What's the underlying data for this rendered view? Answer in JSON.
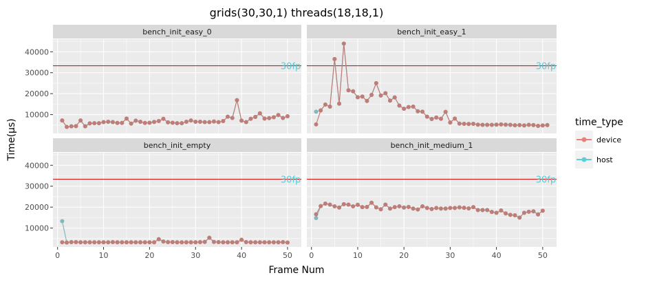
{
  "chart_data": {
    "type": "line",
    "title": "grids(30,30,1)  threads(18,18,1)",
    "xlabel": "Frame Num",
    "ylabel": "Time(μs)",
    "xlim": [
      -1,
      53
    ],
    "ylim": [
      1000,
      46000
    ],
    "x_ticks": [
      0,
      10,
      20,
      30,
      40,
      50
    ],
    "y_ticks": [
      10000,
      20000,
      30000,
      40000
    ],
    "x_tick_labels": [
      "0",
      "10",
      "20",
      "30",
      "40",
      "50"
    ],
    "y_tick_labels": [
      "10000",
      "20000",
      "30000",
      "40000"
    ],
    "reference_line": {
      "value": 33333,
      "color": "#cc0000",
      "label": "30fps"
    },
    "grid": true,
    "legend": {
      "title": "time_type",
      "position": "right",
      "entries": [
        {
          "label": "device",
          "color": "#e8807b"
        },
        {
          "label": "host",
          "color": "#5ccfd9"
        }
      ]
    },
    "series_colors": {
      "device": "#c07d78",
      "host": "#80b8bb"
    },
    "panels": [
      {
        "name": "bench_init_easy_0",
        "series": [
          {
            "name": "device",
            "values": [
              7200,
              4100,
              4400,
              4500,
              7200,
              4400,
              5800,
              5900,
              5900,
              6400,
              6600,
              6400,
              6000,
              6000,
              8100,
              5700,
              7100,
              6600,
              6000,
              6100,
              6500,
              6900,
              8000,
              6300,
              6100,
              5900,
              5900,
              6600,
              7200,
              6600,
              6600,
              6400,
              6400,
              6700,
              6400,
              6900,
              9000,
              8400,
              16900,
              7100,
              6400,
              8000,
              8900,
              10600,
              8100,
              8300,
              8700,
              9800,
              8400,
              9200
            ]
          },
          {
            "name": "host",
            "values": [
              7200,
              4100,
              4400,
              4500,
              7200,
              4400,
              5800,
              5900,
              5900,
              6400,
              6600,
              6400,
              6000,
              6000,
              8100,
              5700,
              7100,
              6600,
              6000,
              6100,
              6500,
              6900,
              8000,
              6300,
              6100,
              5900,
              5900,
              6600,
              7200,
              6600,
              6600,
              6400,
              6400,
              6700,
              6400,
              6900,
              9000,
              8400,
              16900,
              7100,
              6400,
              8000,
              8900,
              10600,
              8100,
              8300,
              8700,
              9800,
              8400,
              9200
            ]
          }
        ]
      },
      {
        "name": "bench_init_easy_1",
        "series": [
          {
            "name": "device",
            "values": [
              5300,
              12000,
              14800,
              13800,
              36500,
              15200,
              43900,
              21600,
              21100,
              18300,
              18600,
              16500,
              19400,
              25000,
              19100,
              20200,
              16700,
              18200,
              14300,
              12800,
              13600,
              13800,
              11600,
              11400,
              9000,
              7900,
              8600,
              8000,
              11300,
              6200,
              8100,
              5700,
              5600,
              5500,
              5600,
              5200,
              5100,
              5100,
              5100,
              5200,
              5300,
              5200,
              5100,
              4900,
              5000,
              4800,
              5100,
              5000,
              4600,
              4800,
              5000
            ]
          },
          {
            "name": "host",
            "values": [
              11400,
              12000,
              14800,
              13800,
              36500,
              15200,
              43900,
              21600,
              21100,
              18300,
              18600,
              16500,
              19400,
              25000,
              19100,
              20200,
              16700,
              18200,
              14300,
              12800,
              13600,
              13800,
              11600,
              11400,
              9000,
              7900,
              8600,
              8000,
              11300,
              6200,
              8100,
              5700,
              5600,
              5500,
              5600,
              5200,
              5100,
              5100,
              5100,
              5200,
              5300,
              5200,
              5100,
              4900,
              5000,
              4800,
              5100,
              5000,
              4600,
              4800,
              5000
            ]
          }
        ]
      },
      {
        "name": "bench_init_empty",
        "series": [
          {
            "name": "device",
            "values": [
              3200,
              3100,
              3300,
              3300,
              3200,
              3200,
              3200,
              3200,
              3200,
              3200,
              3200,
              3300,
              3200,
              3200,
              3200,
              3200,
              3200,
              3200,
              3200,
              3200,
              3200,
              4700,
              3600,
              3300,
              3300,
              3200,
              3200,
              3200,
              3200,
              3200,
              3300,
              3400,
              5400,
              3400,
              3300,
              3200,
              3200,
              3200,
              3200,
              4400,
              3300,
              3200,
              3200,
              3200,
              3200,
              3200,
              3200,
              3200,
              3300,
              3100
            ]
          },
          {
            "name": "host",
            "values": [
              13300,
              3100,
              3300,
              3300,
              3200,
              3200,
              3200,
              3200,
              3200,
              3200,
              3200,
              3300,
              3200,
              3200,
              3200,
              3200,
              3200,
              3200,
              3200,
              3200,
              3200,
              4700,
              3600,
              3300,
              3300,
              3200,
              3200,
              3200,
              3200,
              3200,
              3300,
              3400,
              5400,
              3400,
              3300,
              3200,
              3200,
              3200,
              3200,
              4400,
              3300,
              3200,
              3200,
              3200,
              3200,
              3200,
              3200,
              3200,
              3300,
              3100
            ]
          }
        ]
      },
      {
        "name": "bench_init_medium_1",
        "series": [
          {
            "name": "device",
            "values": [
              16600,
              20500,
              21700,
              21200,
              20400,
              19800,
              21400,
              21200,
              20400,
              21100,
              20000,
              20100,
              22100,
              19900,
              19000,
              21200,
              19300,
              20000,
              20400,
              19800,
              20100,
              19300,
              18900,
              20400,
              19600,
              19100,
              19600,
              19300,
              19300,
              19600,
              19600,
              19900,
              19700,
              19400,
              20000,
              18600,
              18600,
              18600,
              17700,
              17300,
              18400,
              17000,
              16300,
              16100,
              15000,
              17300,
              17800,
              18000,
              16500,
              18300
            ]
          },
          {
            "name": "host",
            "values": [
              14800,
              20500,
              21700,
              21200,
              20400,
              19800,
              21400,
              21200,
              20400,
              21100,
              20000,
              20100,
              22100,
              19900,
              19000,
              21200,
              19300,
              20000,
              20400,
              19800,
              20100,
              19300,
              18900,
              20400,
              19600,
              19100,
              19600,
              19300,
              19300,
              19600,
              19600,
              19900,
              19700,
              19400,
              20000,
              18600,
              18600,
              18600,
              17700,
              17300,
              18400,
              17000,
              16300,
              16100,
              15000,
              17300,
              17800,
              18000,
              16500,
              18300
            ]
          }
        ]
      }
    ]
  }
}
